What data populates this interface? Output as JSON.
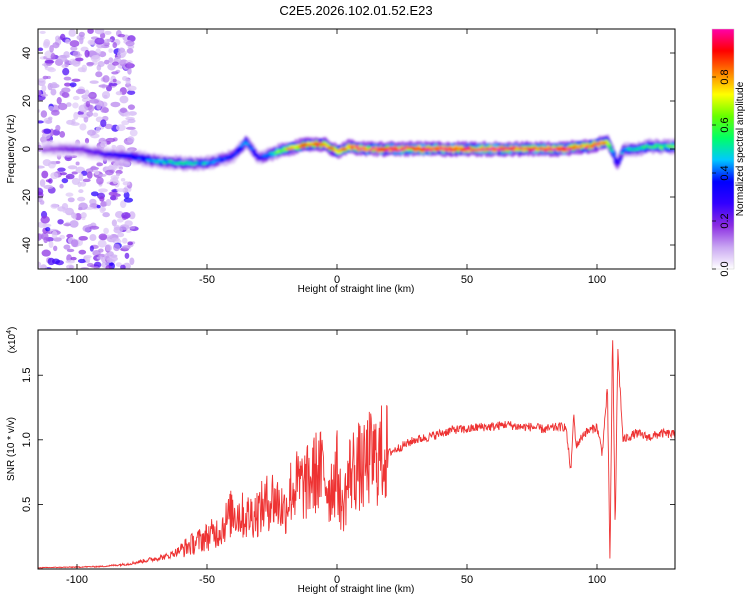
{
  "figure": {
    "title": "C2E5.2026.102.01.52.E23"
  },
  "chart_data": [
    {
      "type": "heatmap",
      "title": "C2E5.2026.102.01.52.E23",
      "xlabel": "Height of straight line (km)",
      "ylabel": "Frequency (Hz)",
      "xlim": [
        -115,
        130
      ],
      "ylim": [
        -50,
        50
      ],
      "x_ticks": [
        -100,
        -50,
        0,
        50,
        100
      ],
      "y_ticks": [
        -40,
        -20,
        0,
        20,
        40
      ],
      "colorbar": {
        "label": "Normalized spectral amplitude",
        "range": [
          0.0,
          1.0
        ],
        "ticks": [
          0.0,
          0.2,
          0.4,
          0.6,
          0.8
        ],
        "colormap": [
          "#ffffff",
          "#c9a6f2",
          "#8a2be2",
          "#3300ff",
          "#0000ff",
          "#00c8ff",
          "#00ff66",
          "#66ff00",
          "#ffff00",
          "#ff8000",
          "#ff0000",
          "#ff00aa"
        ]
      },
      "ridge": {
        "x": [
          -113,
          -100,
          -90,
          -80,
          -70,
          -60,
          -50,
          -40,
          -35,
          -30,
          -25,
          -20,
          -15,
          -10,
          -5,
          0,
          5,
          10,
          15,
          20,
          30,
          40,
          50,
          60,
          70,
          80,
          88,
          92,
          96,
          100,
          104,
          106,
          108,
          110,
          115,
          120,
          125,
          130
        ],
        "frequency": [
          0,
          0,
          -2,
          -3,
          -5,
          -6,
          -6,
          -3,
          3,
          -4,
          -2,
          0,
          1,
          2,
          2,
          -1,
          1,
          0,
          0,
          0,
          0,
          0,
          0,
          0,
          0,
          0,
          0,
          1,
          1,
          2,
          3,
          -1,
          -7,
          0,
          0,
          1,
          1,
          1
        ],
        "amplitude": [
          0.15,
          0.2,
          0.25,
          0.35,
          0.45,
          0.5,
          0.45,
          0.35,
          0.45,
          0.3,
          0.5,
          0.7,
          0.8,
          0.85,
          0.85,
          0.8,
          0.85,
          0.9,
          0.9,
          0.95,
          0.95,
          0.95,
          0.9,
          0.95,
          0.9,
          0.9,
          0.95,
          0.85,
          0.85,
          0.9,
          0.8,
          0.5,
          0.3,
          0.45,
          0.5,
          0.55,
          0.6,
          0.6
        ]
      },
      "noise_region_x": [
        -115,
        -78
      ]
    },
    {
      "type": "line",
      "xlabel": "Height of straight line (km)",
      "ylabel": "SNR (10 * v/v)",
      "y_multiplier_label": "(x10",
      "y_multiplier_exponent": "4",
      "y_multiplier_close": ")",
      "xlim": [
        -115,
        130
      ],
      "ylim": [
        0,
        18500
      ],
      "x_ticks": [
        -100,
        -50,
        0,
        50,
        100
      ],
      "y_ticks": [
        5000,
        10000,
        15000
      ],
      "y_tick_labels": [
        "0.5",
        "1.0",
        "1.5"
      ],
      "line_color": "#ee3333",
      "series": [
        {
          "x": [
            -115,
            -100,
            -90,
            -80,
            -70,
            -65,
            -60,
            -55,
            -50,
            -45,
            -40,
            -35,
            -30,
            -25,
            -22,
            -20,
            -18,
            -15,
            -12,
            -10,
            -8,
            -5,
            -3,
            0,
            2,
            5,
            8,
            10,
            12,
            15,
            18,
            20,
            25,
            30,
            35,
            40,
            45,
            50,
            55,
            60,
            65,
            70,
            75,
            80,
            85,
            88,
            90,
            91,
            92,
            95,
            98,
            100,
            102,
            104,
            105,
            106,
            107,
            108,
            110,
            115,
            120,
            125,
            130
          ],
          "values": [
            100,
            150,
            200,
            400,
            800,
            1000,
            1500,
            2000,
            2500,
            3000,
            4500,
            4000,
            4500,
            5500,
            5000,
            4500,
            6000,
            6500,
            6500,
            7000,
            7500,
            7500,
            6000,
            7500,
            4500,
            7500,
            8000,
            7500,
            8500,
            8500,
            9000,
            9000,
            9500,
            10000,
            10200,
            10500,
            10800,
            10800,
            11000,
            11000,
            11200,
            11000,
            11000,
            10800,
            11000,
            11000,
            7500,
            12000,
            9500,
            10500,
            10800,
            11000,
            9000,
            14000,
            500,
            18500,
            3000,
            17000,
            10000,
            10500,
            10200,
            10500,
            10400
          ]
        }
      ]
    }
  ]
}
